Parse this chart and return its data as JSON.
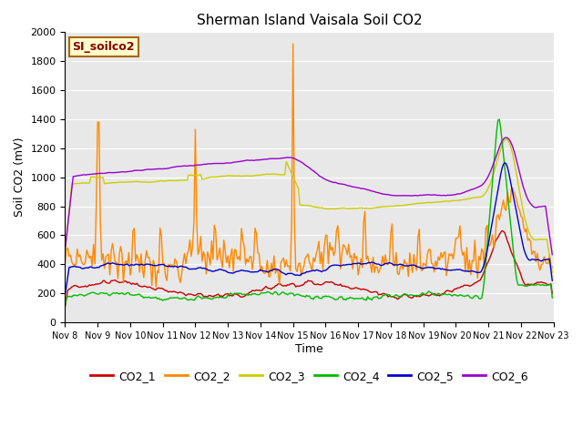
{
  "title": "Sherman Island Vaisala Soil CO2",
  "ylabel": "Soil CO2 (mV)",
  "xlabel": "Time",
  "watermark": "SI_soilco2",
  "x_tick_labels": [
    "Nov 8",
    "Nov 9",
    "Nov 10",
    "Nov 11",
    "Nov 12",
    "Nov 13",
    "Nov 14",
    "Nov 15",
    "Nov 16",
    "Nov 17",
    "Nov 18",
    "Nov 19",
    "Nov 20",
    "Nov 21",
    "Nov 22",
    "Nov 23"
  ],
  "ylim": [
    0,
    2000
  ],
  "xlim": [
    0,
    360
  ],
  "colors": {
    "CO2_1": "#cc0000",
    "CO2_2": "#ff8800",
    "CO2_3": "#cccc00",
    "CO2_4": "#00bb00",
    "CO2_5": "#0000cc",
    "CO2_6": "#9900cc"
  },
  "background_color": "#e8e8e8",
  "watermark_bg": "#ffffcc",
  "watermark_border": "#aa6600",
  "watermark_text_color": "#880000",
  "fig_bg": "#ffffff"
}
